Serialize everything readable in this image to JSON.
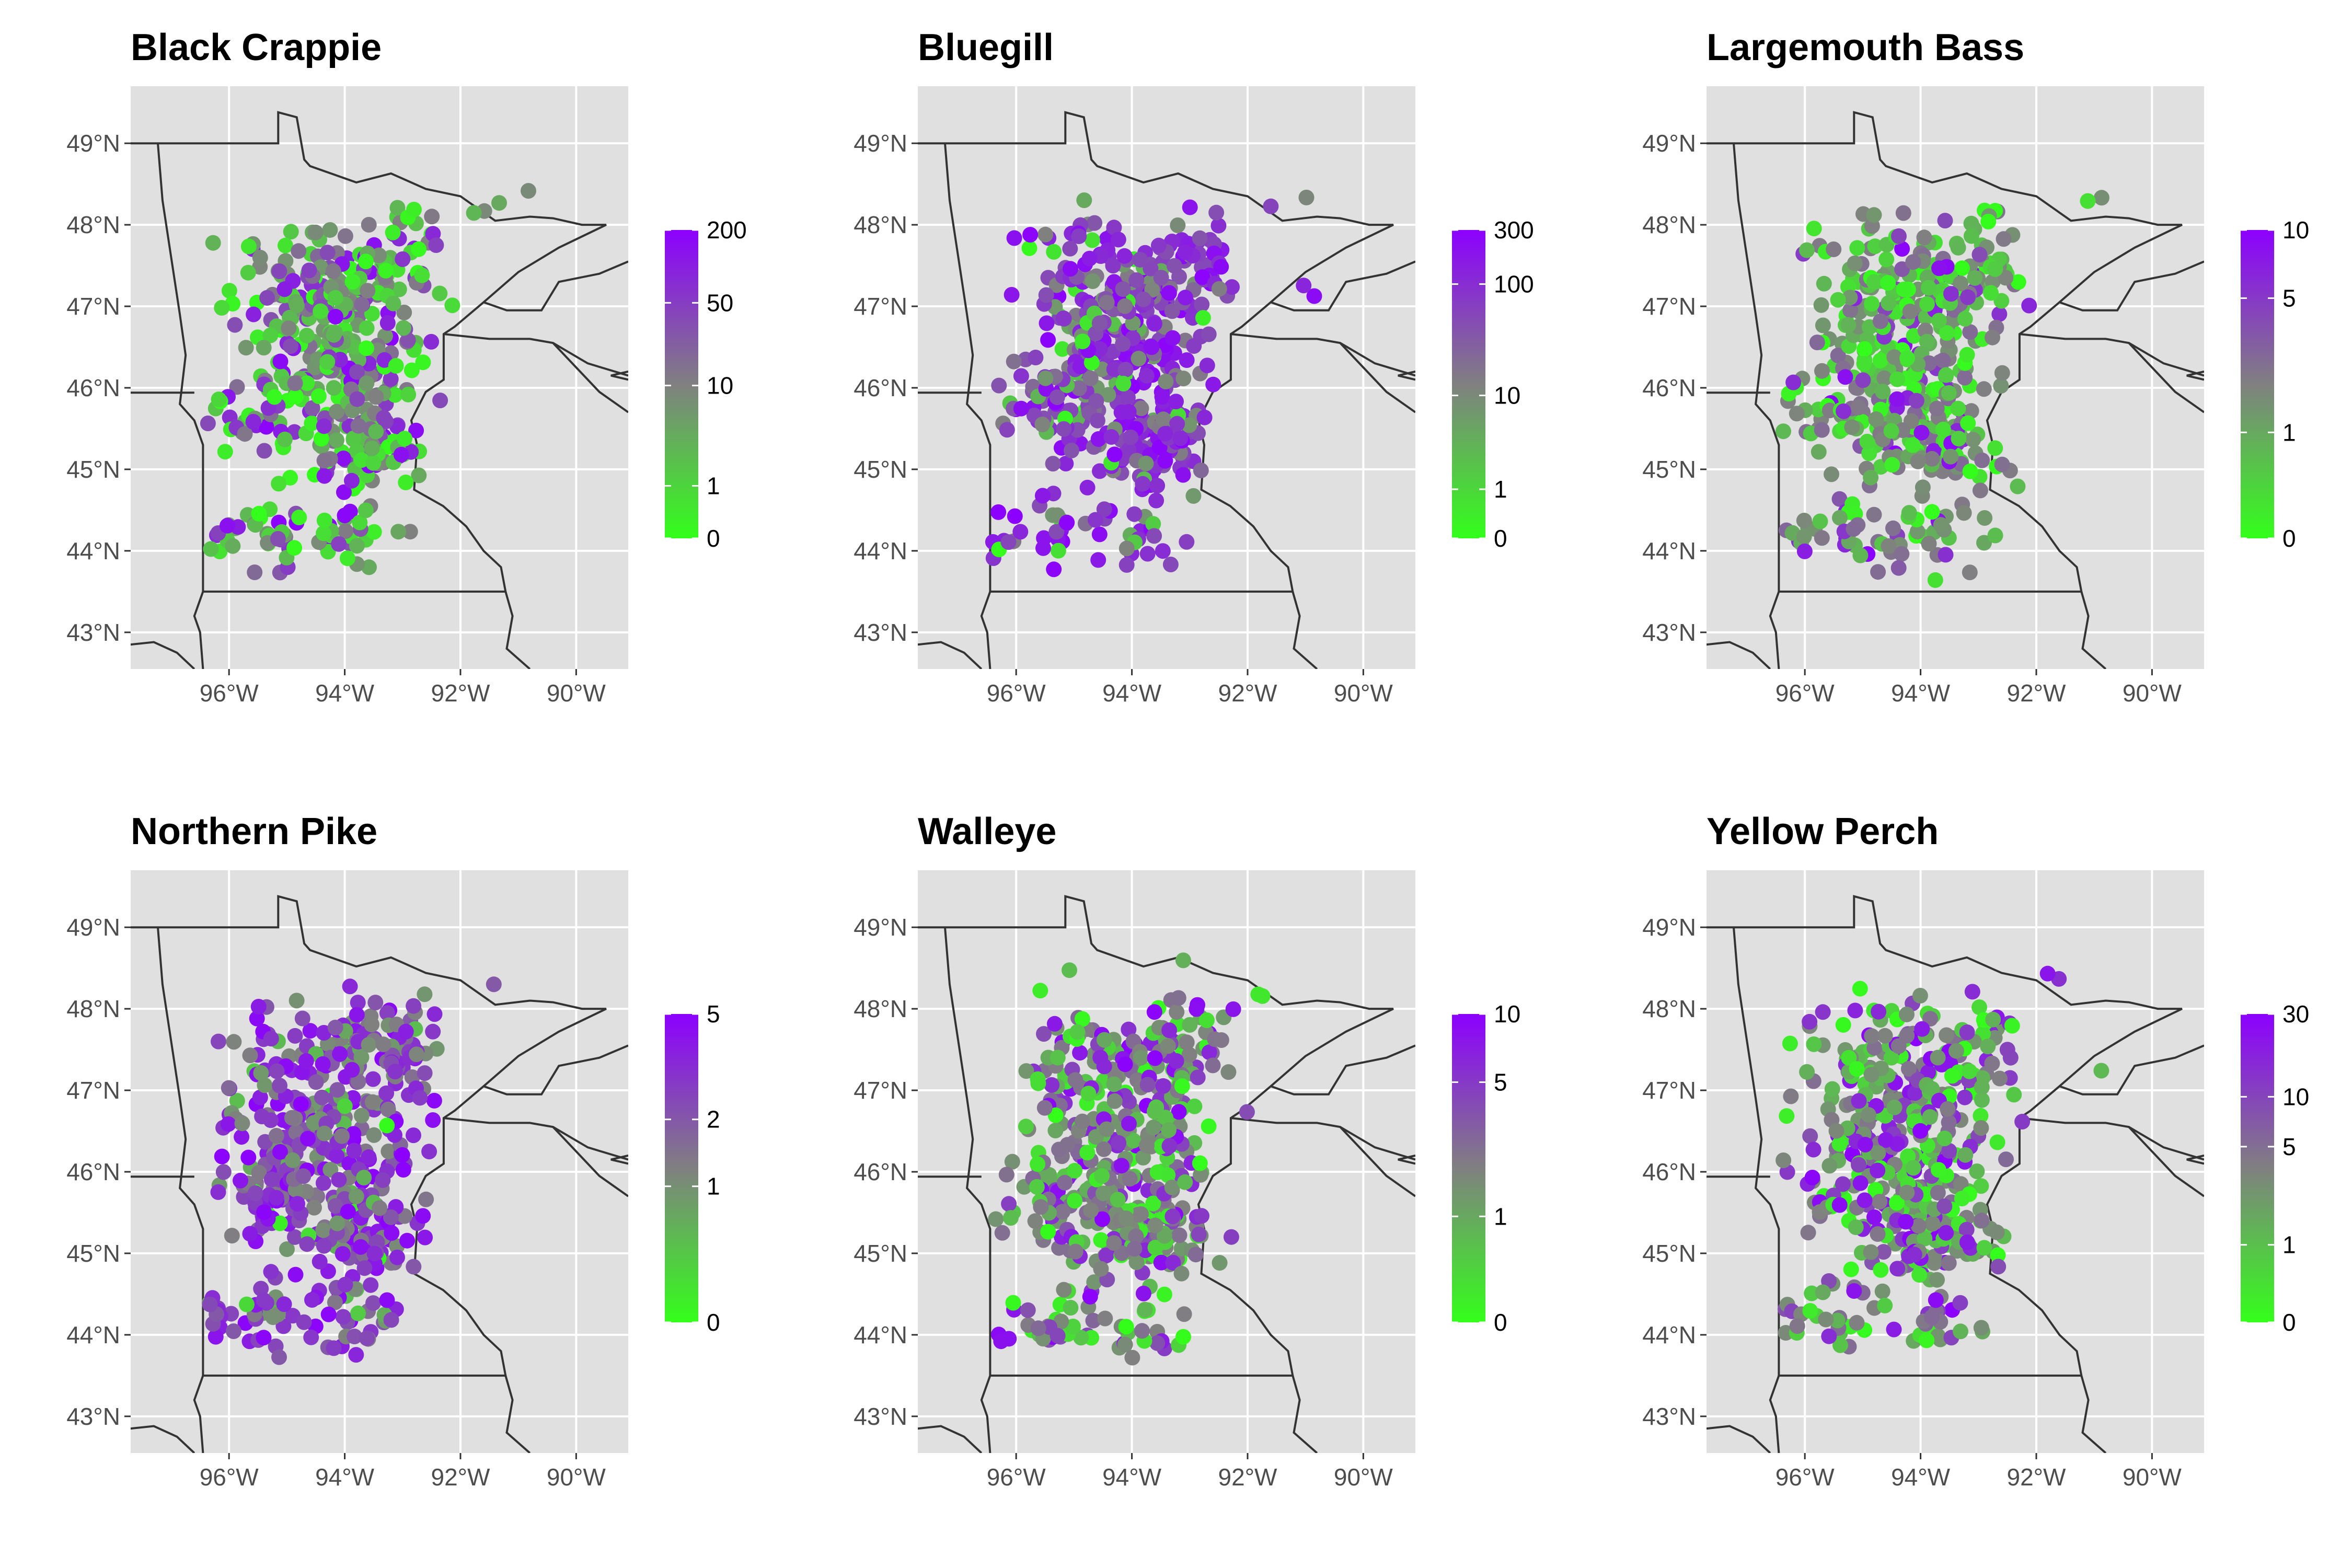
{
  "colors": {
    "panel_bg": "#e0e0e0",
    "grid": "#ffffff",
    "boundary": "#333333",
    "scale_low": "#33ff1a",
    "scale_mid": "#808080",
    "scale_high": "#8c00ff"
  },
  "axis_labels": {
    "lat_ticks": [
      "49°N",
      "48°N",
      "47°N",
      "46°N",
      "45°N",
      "44°N",
      "43°N"
    ],
    "lon_ticks": [
      "96°W",
      "94°W",
      "92°W",
      "90°W"
    ]
  },
  "chart_data": [
    {
      "type": "scatter",
      "title": "Black Crappie",
      "legend_ticks": [
        "200",
        "50",
        "10",
        "1",
        "0"
      ],
      "legend_max": 200,
      "mix": [
        0.45,
        0.25,
        0.3
      ]
    },
    {
      "type": "scatter",
      "title": "Bluegill",
      "legend_ticks": [
        "300",
        "100",
        "10",
        "1",
        "0"
      ],
      "legend_max": 300,
      "mix": [
        0.1,
        0.2,
        0.7
      ]
    },
    {
      "type": "scatter",
      "title": "Largemouth Bass",
      "legend_ticks": [
        "10",
        "5",
        "1",
        "0"
      ],
      "legend_max": 10,
      "mix": [
        0.45,
        0.4,
        0.15
      ]
    },
    {
      "type": "scatter",
      "title": "Northern Pike",
      "legend_ticks": [
        "5",
        "2",
        "1",
        "0"
      ],
      "legend_max": 5,
      "mix": [
        0.08,
        0.27,
        0.65
      ]
    },
    {
      "type": "scatter",
      "title": "Walleye",
      "legend_ticks": [
        "10",
        "5",
        "1",
        "0"
      ],
      "legend_max": 10,
      "mix": [
        0.3,
        0.4,
        0.3
      ]
    },
    {
      "type": "scatter",
      "title": "Yellow Perch",
      "legend_ticks": [
        "30",
        "10",
        "5",
        "1",
        "0"
      ],
      "legend_max": 30,
      "mix": [
        0.35,
        0.35,
        0.3
      ]
    }
  ]
}
